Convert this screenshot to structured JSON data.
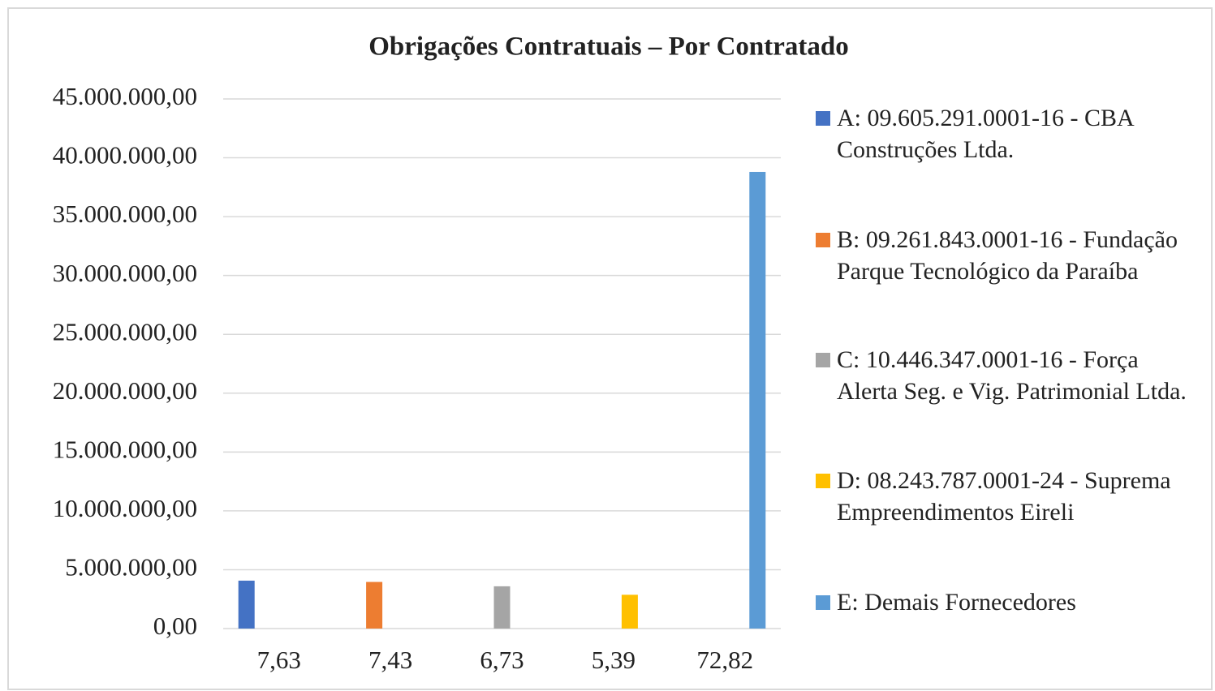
{
  "chart_data": {
    "type": "bar",
    "title": "Obrigações Contratuais – Por Contratado",
    "categories": [
      "7,63",
      "7,43",
      "6,73",
      "5,39",
      "72,82"
    ],
    "series": [
      {
        "name": "A: 09.605.291.0001-16 - CBA Construções Ltda.",
        "color": "#4472c4",
        "values": [
          4070000,
          null,
          null,
          null,
          null
        ]
      },
      {
        "name": "B: 09.261.843.0001-16 - Fundação Parque Tecnológico da Paraíba",
        "color": "#ed7d31",
        "values": [
          null,
          3960000,
          null,
          null,
          null
        ]
      },
      {
        "name": "C: 10.446.347.0001-16 - Força Alerta Seg. e Vig. Patrimonial Ltda.",
        "color": "#a5a5a5",
        "values": [
          null,
          null,
          3590000,
          null,
          null
        ]
      },
      {
        "name": "D: 08.243.787.0001-24 - Suprema Empreendimentos Eireli",
        "color": "#ffc000",
        "values": [
          null,
          null,
          null,
          2870000,
          null
        ]
      },
      {
        "name": "E: Demais Fornecedores",
        "color": "#5b9bd5",
        "values": [
          null,
          null,
          null,
          null,
          38800000
        ]
      }
    ],
    "ylim": [
      0,
      45000000
    ],
    "yticks": [
      {
        "value": 0,
        "label": "0,00"
      },
      {
        "value": 5000000,
        "label": "5.000.000,00"
      },
      {
        "value": 10000000,
        "label": "10.000.000,00"
      },
      {
        "value": 15000000,
        "label": "15.000.000,00"
      },
      {
        "value": 20000000,
        "label": "20.000.000,00"
      },
      {
        "value": 25000000,
        "label": "25.000.000,00"
      },
      {
        "value": 30000000,
        "label": "30.000.000,00"
      },
      {
        "value": 35000000,
        "label": "35.000.000,00"
      },
      {
        "value": 40000000,
        "label": "40.000.000,00"
      },
      {
        "value": 45000000,
        "label": "45.000.000,00"
      }
    ],
    "grid": true,
    "legend": "right"
  }
}
